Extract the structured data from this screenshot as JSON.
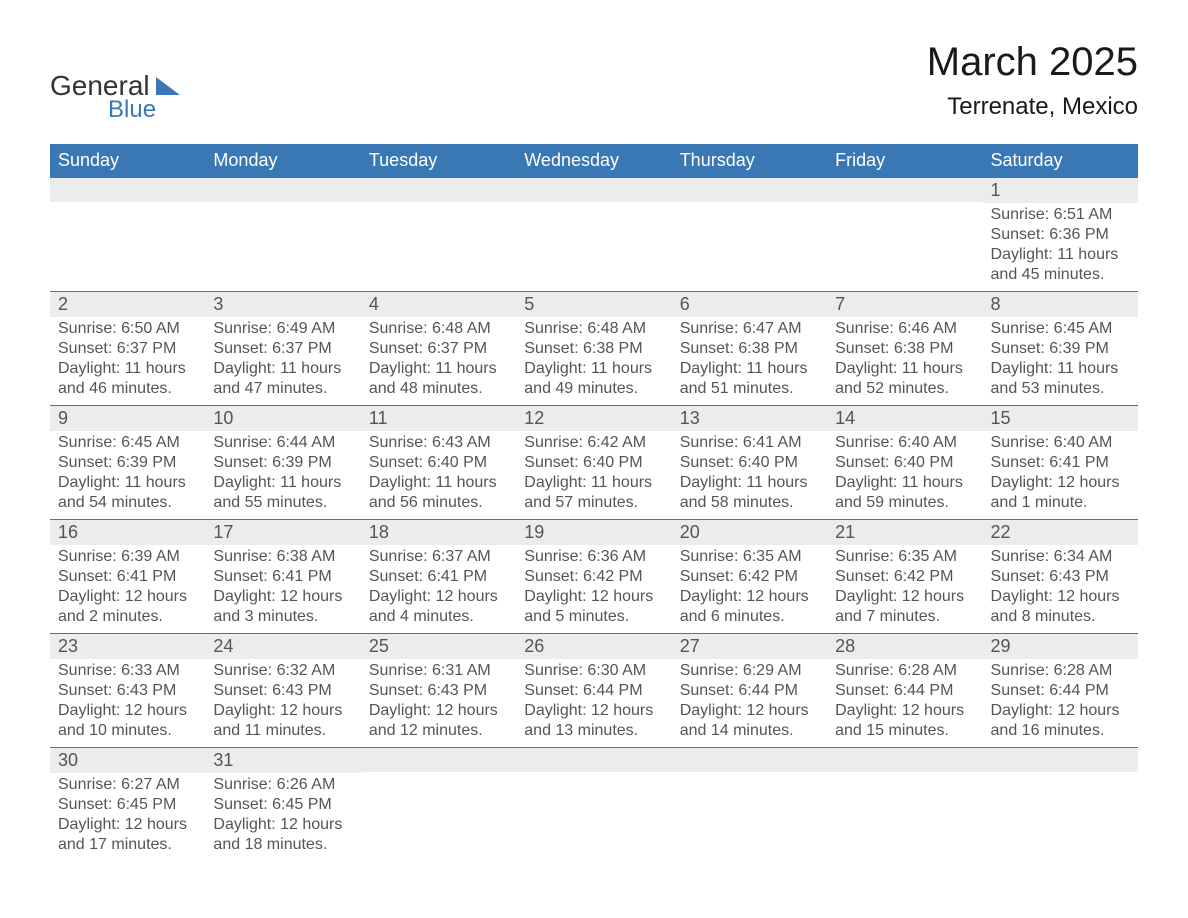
{
  "logo": {
    "general": "General",
    "blue": "Blue"
  },
  "header": {
    "title": "March 2025",
    "location": "Terrenate, Mexico"
  },
  "weekdays": [
    "Sunday",
    "Monday",
    "Tuesday",
    "Wednesday",
    "Thursday",
    "Friday",
    "Saturday"
  ],
  "colors": {
    "header_bg": "#3a78b5",
    "header_text": "#ffffff",
    "daynum_bg": "#ececec",
    "text": "#555555",
    "border": "#3a78b5",
    "page_bg": "#ffffff"
  },
  "weeks": [
    [
      {
        "day": "",
        "sunrise": "",
        "sunset": "",
        "daylight1": "",
        "daylight2": ""
      },
      {
        "day": "",
        "sunrise": "",
        "sunset": "",
        "daylight1": "",
        "daylight2": ""
      },
      {
        "day": "",
        "sunrise": "",
        "sunset": "",
        "daylight1": "",
        "daylight2": ""
      },
      {
        "day": "",
        "sunrise": "",
        "sunset": "",
        "daylight1": "",
        "daylight2": ""
      },
      {
        "day": "",
        "sunrise": "",
        "sunset": "",
        "daylight1": "",
        "daylight2": ""
      },
      {
        "day": "",
        "sunrise": "",
        "sunset": "",
        "daylight1": "",
        "daylight2": ""
      },
      {
        "day": "1",
        "sunrise": "Sunrise: 6:51 AM",
        "sunset": "Sunset: 6:36 PM",
        "daylight1": "Daylight: 11 hours",
        "daylight2": "and 45 minutes."
      }
    ],
    [
      {
        "day": "2",
        "sunrise": "Sunrise: 6:50 AM",
        "sunset": "Sunset: 6:37 PM",
        "daylight1": "Daylight: 11 hours",
        "daylight2": "and 46 minutes."
      },
      {
        "day": "3",
        "sunrise": "Sunrise: 6:49 AM",
        "sunset": "Sunset: 6:37 PM",
        "daylight1": "Daylight: 11 hours",
        "daylight2": "and 47 minutes."
      },
      {
        "day": "4",
        "sunrise": "Sunrise: 6:48 AM",
        "sunset": "Sunset: 6:37 PM",
        "daylight1": "Daylight: 11 hours",
        "daylight2": "and 48 minutes."
      },
      {
        "day": "5",
        "sunrise": "Sunrise: 6:48 AM",
        "sunset": "Sunset: 6:38 PM",
        "daylight1": "Daylight: 11 hours",
        "daylight2": "and 49 minutes."
      },
      {
        "day": "6",
        "sunrise": "Sunrise: 6:47 AM",
        "sunset": "Sunset: 6:38 PM",
        "daylight1": "Daylight: 11 hours",
        "daylight2": "and 51 minutes."
      },
      {
        "day": "7",
        "sunrise": "Sunrise: 6:46 AM",
        "sunset": "Sunset: 6:38 PM",
        "daylight1": "Daylight: 11 hours",
        "daylight2": "and 52 minutes."
      },
      {
        "day": "8",
        "sunrise": "Sunrise: 6:45 AM",
        "sunset": "Sunset: 6:39 PM",
        "daylight1": "Daylight: 11 hours",
        "daylight2": "and 53 minutes."
      }
    ],
    [
      {
        "day": "9",
        "sunrise": "Sunrise: 6:45 AM",
        "sunset": "Sunset: 6:39 PM",
        "daylight1": "Daylight: 11 hours",
        "daylight2": "and 54 minutes."
      },
      {
        "day": "10",
        "sunrise": "Sunrise: 6:44 AM",
        "sunset": "Sunset: 6:39 PM",
        "daylight1": "Daylight: 11 hours",
        "daylight2": "and 55 minutes."
      },
      {
        "day": "11",
        "sunrise": "Sunrise: 6:43 AM",
        "sunset": "Sunset: 6:40 PM",
        "daylight1": "Daylight: 11 hours",
        "daylight2": "and 56 minutes."
      },
      {
        "day": "12",
        "sunrise": "Sunrise: 6:42 AM",
        "sunset": "Sunset: 6:40 PM",
        "daylight1": "Daylight: 11 hours",
        "daylight2": "and 57 minutes."
      },
      {
        "day": "13",
        "sunrise": "Sunrise: 6:41 AM",
        "sunset": "Sunset: 6:40 PM",
        "daylight1": "Daylight: 11 hours",
        "daylight2": "and 58 minutes."
      },
      {
        "day": "14",
        "sunrise": "Sunrise: 6:40 AM",
        "sunset": "Sunset: 6:40 PM",
        "daylight1": "Daylight: 11 hours",
        "daylight2": "and 59 minutes."
      },
      {
        "day": "15",
        "sunrise": "Sunrise: 6:40 AM",
        "sunset": "Sunset: 6:41 PM",
        "daylight1": "Daylight: 12 hours",
        "daylight2": "and 1 minute."
      }
    ],
    [
      {
        "day": "16",
        "sunrise": "Sunrise: 6:39 AM",
        "sunset": "Sunset: 6:41 PM",
        "daylight1": "Daylight: 12 hours",
        "daylight2": "and 2 minutes."
      },
      {
        "day": "17",
        "sunrise": "Sunrise: 6:38 AM",
        "sunset": "Sunset: 6:41 PM",
        "daylight1": "Daylight: 12 hours",
        "daylight2": "and 3 minutes."
      },
      {
        "day": "18",
        "sunrise": "Sunrise: 6:37 AM",
        "sunset": "Sunset: 6:41 PM",
        "daylight1": "Daylight: 12 hours",
        "daylight2": "and 4 minutes."
      },
      {
        "day": "19",
        "sunrise": "Sunrise: 6:36 AM",
        "sunset": "Sunset: 6:42 PM",
        "daylight1": "Daylight: 12 hours",
        "daylight2": "and 5 minutes."
      },
      {
        "day": "20",
        "sunrise": "Sunrise: 6:35 AM",
        "sunset": "Sunset: 6:42 PM",
        "daylight1": "Daylight: 12 hours",
        "daylight2": "and 6 minutes."
      },
      {
        "day": "21",
        "sunrise": "Sunrise: 6:35 AM",
        "sunset": "Sunset: 6:42 PM",
        "daylight1": "Daylight: 12 hours",
        "daylight2": "and 7 minutes."
      },
      {
        "day": "22",
        "sunrise": "Sunrise: 6:34 AM",
        "sunset": "Sunset: 6:43 PM",
        "daylight1": "Daylight: 12 hours",
        "daylight2": "and 8 minutes."
      }
    ],
    [
      {
        "day": "23",
        "sunrise": "Sunrise: 6:33 AM",
        "sunset": "Sunset: 6:43 PM",
        "daylight1": "Daylight: 12 hours",
        "daylight2": "and 10 minutes."
      },
      {
        "day": "24",
        "sunrise": "Sunrise: 6:32 AM",
        "sunset": "Sunset: 6:43 PM",
        "daylight1": "Daylight: 12 hours",
        "daylight2": "and 11 minutes."
      },
      {
        "day": "25",
        "sunrise": "Sunrise: 6:31 AM",
        "sunset": "Sunset: 6:43 PM",
        "daylight1": "Daylight: 12 hours",
        "daylight2": "and 12 minutes."
      },
      {
        "day": "26",
        "sunrise": "Sunrise: 6:30 AM",
        "sunset": "Sunset: 6:44 PM",
        "daylight1": "Daylight: 12 hours",
        "daylight2": "and 13 minutes."
      },
      {
        "day": "27",
        "sunrise": "Sunrise: 6:29 AM",
        "sunset": "Sunset: 6:44 PM",
        "daylight1": "Daylight: 12 hours",
        "daylight2": "and 14 minutes."
      },
      {
        "day": "28",
        "sunrise": "Sunrise: 6:28 AM",
        "sunset": "Sunset: 6:44 PM",
        "daylight1": "Daylight: 12 hours",
        "daylight2": "and 15 minutes."
      },
      {
        "day": "29",
        "sunrise": "Sunrise: 6:28 AM",
        "sunset": "Sunset: 6:44 PM",
        "daylight1": "Daylight: 12 hours",
        "daylight2": "and 16 minutes."
      }
    ],
    [
      {
        "day": "30",
        "sunrise": "Sunrise: 6:27 AM",
        "sunset": "Sunset: 6:45 PM",
        "daylight1": "Daylight: 12 hours",
        "daylight2": "and 17 minutes."
      },
      {
        "day": "31",
        "sunrise": "Sunrise: 6:26 AM",
        "sunset": "Sunset: 6:45 PM",
        "daylight1": "Daylight: 12 hours",
        "daylight2": "and 18 minutes."
      },
      {
        "day": "",
        "sunrise": "",
        "sunset": "",
        "daylight1": "",
        "daylight2": ""
      },
      {
        "day": "",
        "sunrise": "",
        "sunset": "",
        "daylight1": "",
        "daylight2": ""
      },
      {
        "day": "",
        "sunrise": "",
        "sunset": "",
        "daylight1": "",
        "daylight2": ""
      },
      {
        "day": "",
        "sunrise": "",
        "sunset": "",
        "daylight1": "",
        "daylight2": ""
      },
      {
        "day": "",
        "sunrise": "",
        "sunset": "",
        "daylight1": "",
        "daylight2": ""
      }
    ]
  ]
}
